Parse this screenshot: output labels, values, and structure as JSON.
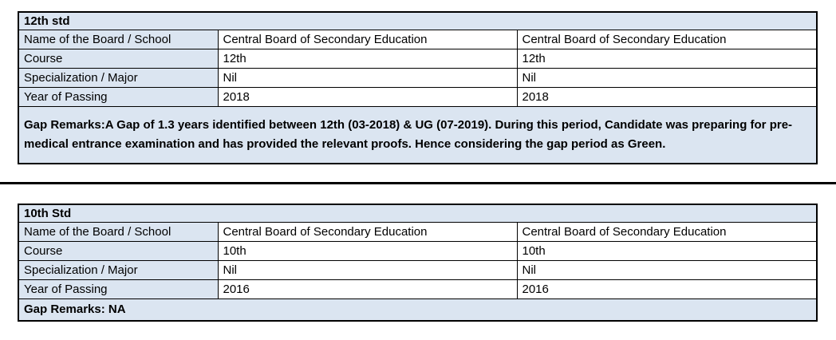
{
  "document": {
    "sections": [
      {
        "title": "12th std",
        "rows": [
          {
            "label": "Name of the Board / School",
            "values": [
              "Central Board of Secondary Education",
              "Central Board of Secondary Education"
            ]
          },
          {
            "label": "Course",
            "values": [
              "12th",
              "12th"
            ]
          },
          {
            "label": "Specialization / Major",
            "values": [
              "Nil",
              "Nil"
            ]
          },
          {
            "label": "Year of Passing",
            "values": [
              "2018",
              "2018"
            ]
          }
        ],
        "gap_remarks": "Gap Remarks:A Gap of 1.3 years identified between 12th (03-2018) & UG (07-2019). During this period, Candidate was preparing for pre-medical entrance examination and has provided the relevant proofs. Hence considering the gap period as Green."
      },
      {
        "title": "10th Std",
        "rows": [
          {
            "label": "Name of the Board / School",
            "values": [
              "Central Board of Secondary Education",
              "Central Board of Secondary Education"
            ]
          },
          {
            "label": "Course",
            "values": [
              "10th",
              "10th"
            ]
          },
          {
            "label": "Specialization / Major",
            "values": [
              "Nil",
              "Nil"
            ]
          },
          {
            "label": "Year of Passing",
            "values": [
              "2016",
              "2016"
            ]
          }
        ],
        "gap_remarks": "Gap Remarks: NA"
      }
    ]
  },
  "colors": {
    "highlight_fill": "#dbe5f1",
    "cell_fill": "#ffffff",
    "border": "#000000",
    "text": "#000000",
    "divider": "#000000"
  }
}
